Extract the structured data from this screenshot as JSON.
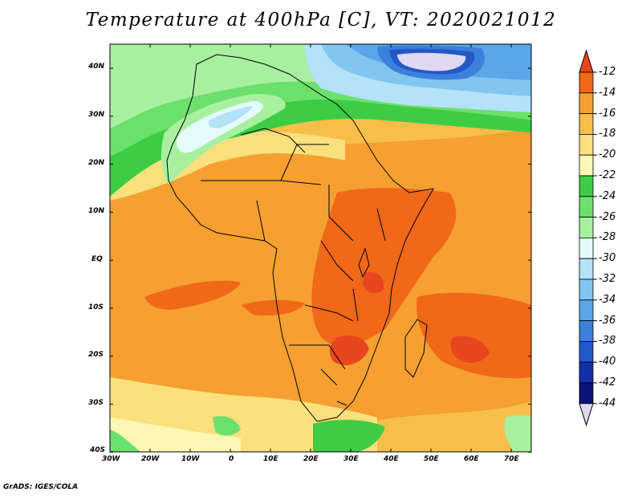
{
  "title": "Temperature at 400hPa [C], VT: 2020021012",
  "footer": "GrADS: IGES/COLA",
  "map": {
    "lon_labels": [
      "30W",
      "20W",
      "10W",
      "0",
      "10E",
      "20E",
      "30E",
      "40E",
      "50E",
      "60E",
      "70E"
    ],
    "lat_labels": [
      "40N",
      "30N",
      "20N",
      "10N",
      "EQ",
      "10S",
      "20S",
      "30S",
      "40S"
    ]
  },
  "colorbar": {
    "labels": [
      "-12",
      "-14",
      "-16",
      "-18",
      "-20",
      "-22",
      "-24",
      "-26",
      "-28",
      "-30",
      "-32",
      "-34",
      "-36",
      "-38",
      "-40",
      "-42",
      "-44"
    ],
    "colors": [
      "#e8461e",
      "#f06818",
      "#f5a030",
      "#f7bf4a",
      "#fbe07e",
      "#fdf7b5",
      "#3dcc44",
      "#6be06b",
      "#a8f0a0",
      "#e6fcfc",
      "#b4e2f8",
      "#82c6f0",
      "#5aa6e8",
      "#3c80dc",
      "#2358c8",
      "#1430a8",
      "#0a1478",
      "#e0d8f4"
    ]
  }
}
